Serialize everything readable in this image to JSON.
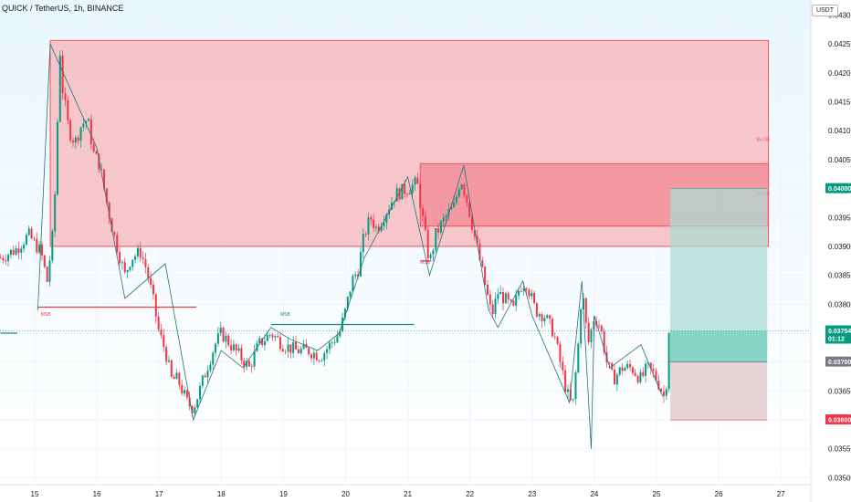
{
  "header": {
    "symbol_title": "QUICK / TetherUS, 1h, BINANCE",
    "currency": "USDT"
  },
  "chart_data": {
    "type": "candlestick",
    "x_ticks": [
      {
        "label": "15",
        "t": 0.0
      },
      {
        "label": "16",
        "t": 1.0
      },
      {
        "label": "17",
        "t": 2.0
      },
      {
        "label": "18",
        "t": 3.0
      },
      {
        "label": "19",
        "t": 4.0
      },
      {
        "label": "20",
        "t": 5.0
      },
      {
        "label": "21",
        "t": 6.0
      },
      {
        "label": "22",
        "t": 7.0
      },
      {
        "label": "23",
        "t": 8.0
      },
      {
        "label": "24",
        "t": 9.0
      },
      {
        "label": "25",
        "t": 10.0
      },
      {
        "label": "26",
        "t": 11.0
      },
      {
        "label": "27",
        "t": 12.0
      }
    ],
    "y_ticks": [
      0.035,
      0.0355,
      0.036,
      0.0365,
      0.037,
      0.0375,
      0.038,
      0.0385,
      0.039,
      0.0395,
      0.04,
      0.0405,
      0.041,
      0.0415,
      0.042,
      0.0425,
      0.043
    ],
    "y_tick_labels": [
      "0.03500",
      "0.03550",
      "0.03600",
      "0.03650",
      "0.03700",
      "0.03750",
      "0.03800",
      "0.03850",
      "0.03900",
      "0.03950",
      "0.04000",
      "0.04050",
      "0.04100",
      "0.04150",
      "0.04200",
      "0.04250",
      "0.04300"
    ],
    "ylim": [
      0.03488,
      0.04326
    ],
    "xlim": [
      -0.55,
      12.3
    ],
    "price_path": [
      [
        -0.55,
        0.0388
      ],
      [
        -0.3,
        0.03895
      ],
      [
        -0.1,
        0.0392
      ],
      [
        0.1,
        0.0389
      ],
      [
        0.2,
        0.0384
      ],
      [
        0.25,
        0.03885
      ],
      [
        0.3,
        0.0393
      ],
      [
        0.35,
        0.0405
      ],
      [
        0.4,
        0.0425
      ],
      [
        0.45,
        0.0417
      ],
      [
        0.55,
        0.041
      ],
      [
        0.65,
        0.0408
      ],
      [
        0.75,
        0.0411
      ],
      [
        0.85,
        0.0412
      ],
      [
        0.95,
        0.0406
      ],
      [
        1.05,
        0.0404
      ],
      [
        1.15,
        0.0398
      ],
      [
        1.25,
        0.0393
      ],
      [
        1.35,
        0.0389
      ],
      [
        1.45,
        0.0385
      ],
      [
        1.55,
        0.0388
      ],
      [
        1.7,
        0.0389
      ],
      [
        1.8,
        0.0386
      ],
      [
        1.9,
        0.0381
      ],
      [
        2.0,
        0.0375
      ],
      [
        2.1,
        0.0372
      ],
      [
        2.2,
        0.0367
      ],
      [
        2.3,
        0.0367
      ],
      [
        2.45,
        0.0363
      ],
      [
        2.55,
        0.0362
      ],
      [
        2.65,
        0.0365
      ],
      [
        2.8,
        0.037
      ],
      [
        2.9,
        0.0373
      ],
      [
        3.0,
        0.0375
      ],
      [
        3.15,
        0.0373
      ],
      [
        3.3,
        0.0371
      ],
      [
        3.45,
        0.0369
      ],
      [
        3.6,
        0.0373
      ],
      [
        3.8,
        0.0375
      ],
      [
        4.0,
        0.0373
      ],
      [
        4.2,
        0.0372
      ],
      [
        4.4,
        0.0372
      ],
      [
        4.6,
        0.0371
      ],
      [
        4.75,
        0.0373
      ],
      [
        4.9,
        0.0375
      ],
      [
        5.0,
        0.0379
      ],
      [
        5.1,
        0.0384
      ],
      [
        5.2,
        0.0386
      ],
      [
        5.3,
        0.0392
      ],
      [
        5.4,
        0.0395
      ],
      [
        5.5,
        0.0393
      ],
      [
        5.65,
        0.0396
      ],
      [
        5.8,
        0.0399
      ],
      [
        6.0,
        0.04
      ],
      [
        6.15,
        0.0401
      ],
      [
        6.25,
        0.0394
      ],
      [
        6.35,
        0.0387
      ],
      [
        6.45,
        0.0392
      ],
      [
        6.6,
        0.0395
      ],
      [
        6.75,
        0.0397
      ],
      [
        6.85,
        0.0402
      ],
      [
        6.95,
        0.0398
      ],
      [
        7.05,
        0.0393
      ],
      [
        7.15,
        0.0388
      ],
      [
        7.25,
        0.0383
      ],
      [
        7.35,
        0.0378
      ],
      [
        7.45,
        0.0382
      ],
      [
        7.55,
        0.0381
      ],
      [
        7.7,
        0.0379
      ],
      [
        7.8,
        0.0383
      ],
      [
        7.9,
        0.0384
      ],
      [
        8.05,
        0.0379
      ],
      [
        8.2,
        0.0378
      ],
      [
        8.35,
        0.0375
      ],
      [
        8.45,
        0.037
      ],
      [
        8.55,
        0.0365
      ],
      [
        8.65,
        0.0362
      ],
      [
        8.75,
        0.0374
      ],
      [
        8.8,
        0.0383
      ],
      [
        8.9,
        0.0373
      ],
      [
        9.0,
        0.0378
      ],
      [
        9.1,
        0.0376
      ],
      [
        9.2,
        0.037
      ],
      [
        9.3,
        0.0367
      ],
      [
        9.45,
        0.0369
      ],
      [
        9.6,
        0.0369
      ],
      [
        9.75,
        0.0367
      ],
      [
        9.85,
        0.0369
      ],
      [
        9.95,
        0.0368
      ],
      [
        10.05,
        0.0366
      ],
      [
        10.12,
        0.0364
      ],
      [
        10.18,
        0.0368
      ],
      [
        10.22,
        0.0375
      ]
    ],
    "zigzag": [
      [
        0.05,
        0.0379
      ],
      [
        0.25,
        0.0425
      ],
      [
        1.0,
        0.0407
      ],
      [
        1.45,
        0.0381
      ],
      [
        2.1,
        0.0387
      ],
      [
        2.55,
        0.036
      ],
      [
        3.0,
        0.0372
      ],
      [
        3.35,
        0.0369
      ],
      [
        3.8,
        0.0376
      ],
      [
        4.1,
        0.0374
      ],
      [
        4.55,
        0.0372
      ],
      [
        4.9,
        0.0375
      ],
      [
        5.3,
        0.0388
      ],
      [
        6.0,
        0.0402
      ],
      [
        6.35,
        0.0385
      ],
      [
        6.9,
        0.0404
      ],
      [
        7.3,
        0.0379
      ],
      [
        7.45,
        0.0376
      ],
      [
        7.85,
        0.0384
      ],
      [
        8.0,
        0.0378
      ],
      [
        8.6,
        0.0363
      ],
      [
        8.8,
        0.0384
      ],
      [
        8.95,
        0.0355
      ],
      [
        9.0,
        0.0378
      ],
      [
        9.25,
        0.0369
      ],
      [
        9.75,
        0.0373
      ],
      [
        10.1,
        0.0364
      ]
    ],
    "supply_zones": [
      {
        "x0": 0.25,
        "x1": 11.8,
        "y0": 0.039,
        "y1": 0.04256,
        "fill": "#f7b4b8",
        "stroke": "#f0525d",
        "label": "Bv-Ob"
      },
      {
        "x0": 6.2,
        "x1": 11.8,
        "y0": 0.03935,
        "y1": 0.04043,
        "fill": "#f38a93",
        "stroke": "#f0525d",
        "label": "Bv-Ob"
      }
    ],
    "horizontal_lines": [
      {
        "x0": 0.05,
        "x1": 2.6,
        "y": 0.03795,
        "color": "#f23645",
        "label": "MSB",
        "label_t": 0.1,
        "label_y": 0.0378
      },
      {
        "x0": 3.8,
        "x1": 6.1,
        "y": 0.03765,
        "color": "#1e8c7a",
        "label": "MSB",
        "label_t": 3.95,
        "label_y": 0.0378
      },
      {
        "x0": -0.55,
        "x1": -0.28,
        "y": 0.0375,
        "color": "#1e8c7a",
        "label": "",
        "label_t": 0,
        "label_y": 0
      },
      {
        "x0": 6.2,
        "x1": 6.38,
        "y": 0.03875,
        "color": "#f23645",
        "label": "MSB",
        "label_t": 6.2,
        "label_y": 0.0387
      }
    ],
    "position": {
      "x0": 10.22,
      "x1": 11.78,
      "entry": 0.03754,
      "target": 0.04,
      "stop": 0.036,
      "marker": 0.037,
      "target_color": "#22ab94",
      "stop_color": "#f23645",
      "profit_fill": "#a9ddd4",
      "loss_fill": "#e3cfd1"
    },
    "price_badges": [
      {
        "value": 0.04,
        "label": "0.04000",
        "bg": "#089981"
      },
      {
        "value": 0.03754,
        "label": "0.03754",
        "sublabel": "01:12",
        "bg": "#089981"
      },
      {
        "value": 0.037,
        "label": "0.03700",
        "bg": "#787b86"
      },
      {
        "value": 0.036,
        "label": "0.03600",
        "bg": "#f23645"
      }
    ],
    "last_price_line": {
      "value": 0.03754,
      "color": "#089981"
    },
    "background": {
      "top": "#e9f7fd",
      "bottom": "#ffffff"
    },
    "up_color": "#089981",
    "down_color": "#f23645"
  }
}
